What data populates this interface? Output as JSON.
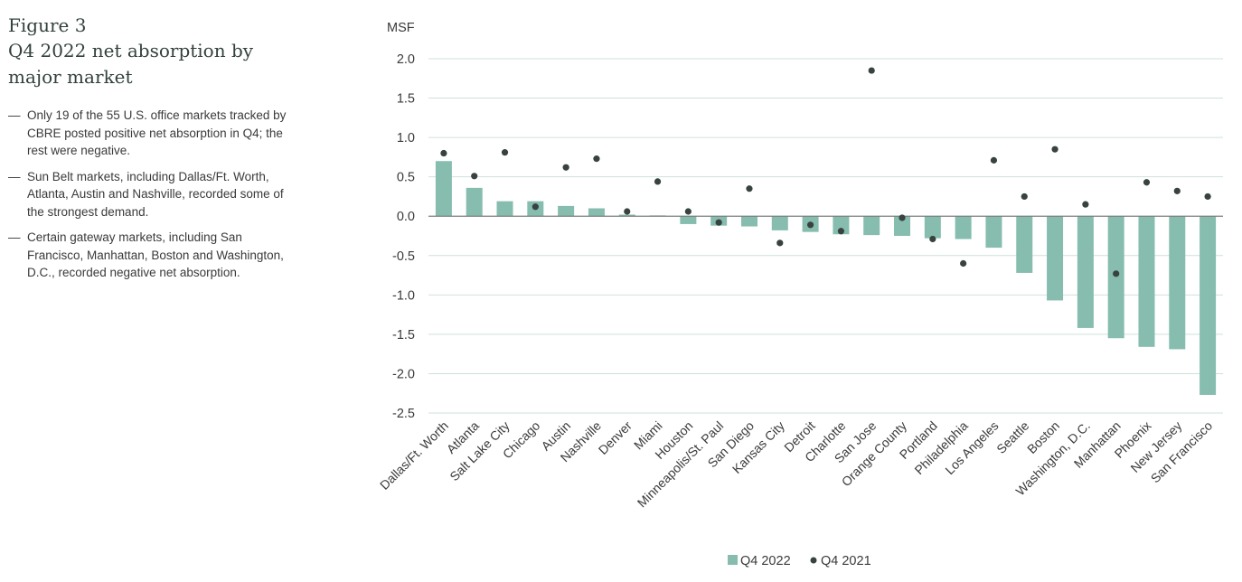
{
  "figure": {
    "label": "Figure 3",
    "title": "Q4 2022 net absorption by major market",
    "bullets": [
      "Only 19 of the 55 U.S. office markets tracked by CBRE posted positive net absorption in Q4; the rest were negative.",
      "Sun Belt markets, including Dallas/Ft. Worth, Atlanta, Austin and Nashville, recorded some of the strongest demand.",
      "Certain gateway markets, including San Francisco, Manhattan, Boston and Washington, D.C., recorded negative net absorption."
    ],
    "bullet_marker": "—"
  },
  "colors": {
    "bar": "#86bdae",
    "dot": "#38423f",
    "grid": "#cfe1db",
    "zero_line": "#7a7f7d",
    "title_text": "#32413b",
    "body_text": "#3a3a3a"
  },
  "chart_data": {
    "type": "bar",
    "ylabel": "MSF",
    "ylim": [
      -2.5,
      2.0
    ],
    "yticks": [
      2.0,
      1.5,
      1.0,
      0.5,
      0.0,
      -0.5,
      -1.0,
      -1.5,
      -2.0,
      -2.5
    ],
    "ytick_labels": [
      "2.0",
      "1.5",
      "1.0",
      "0.5",
      "0.0",
      "-0.5",
      "-1.0",
      "-1.5",
      "-2.0",
      "-2.5"
    ],
    "grid": true,
    "legend_position": "bottom-center",
    "categories": [
      "Dallas/Ft. Worth",
      "Atlanta",
      "Salt Lake City",
      "Chicago",
      "Austin",
      "Nashville",
      "Denver",
      "Miami",
      "Houston",
      "Minneapolis/St. Paul",
      "San Diego",
      "Kansas City",
      "Detroit",
      "Charlotte",
      "San Jose",
      "Orange County",
      "Portland",
      "Philadelphia",
      "Los Angeles",
      "Seattle",
      "Boston",
      "Washington, D.C.",
      "Manhattan",
      "Phoenix",
      "New Jersey",
      "San Francisco"
    ],
    "series": [
      {
        "name": "Q4 2022",
        "kind": "bar",
        "values": [
          0.7,
          0.36,
          0.19,
          0.19,
          0.13,
          0.1,
          0.02,
          0.01,
          -0.1,
          -0.12,
          -0.13,
          -0.18,
          -0.2,
          -0.23,
          -0.24,
          -0.25,
          -0.28,
          -0.29,
          -0.4,
          -0.72,
          -1.07,
          -1.42,
          -1.55,
          -1.66,
          -1.69,
          -2.27
        ]
      },
      {
        "name": "Q4 2021",
        "kind": "dot",
        "values": [
          0.8,
          0.51,
          0.81,
          0.12,
          0.62,
          0.73,
          0.06,
          0.44,
          0.06,
          -0.08,
          0.35,
          -0.34,
          -0.11,
          -0.19,
          1.85,
          -0.02,
          -0.29,
          -0.6,
          0.71,
          0.25,
          0.85,
          0.15,
          -0.73,
          0.43,
          0.32,
          0.25
        ]
      }
    ]
  }
}
